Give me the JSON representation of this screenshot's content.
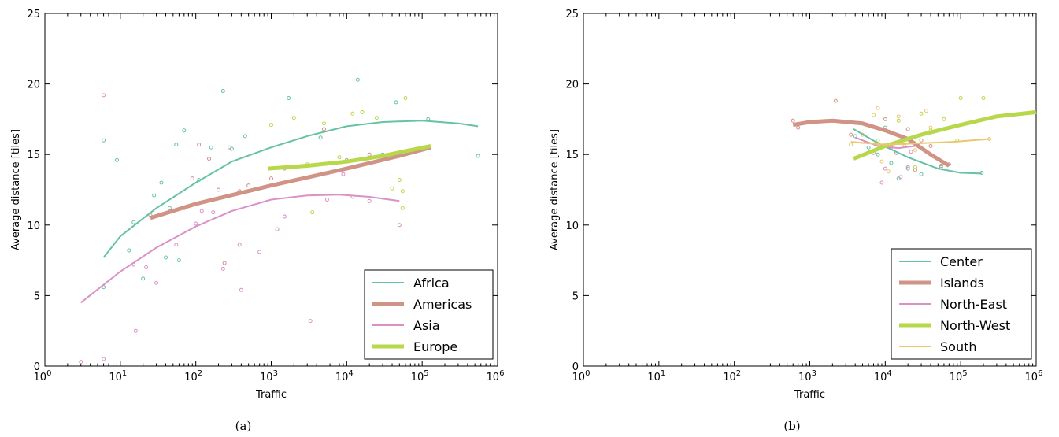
{
  "chart_data": [
    {
      "type": "scatter",
      "caption": "(a)",
      "xlabel": "Traffic",
      "ylabel": "Average distance [tiles]",
      "xscale": "log",
      "xlim": [
        1,
        1000000
      ],
      "ylim": [
        0,
        25
      ],
      "x_tick_labels": [
        {
          "base": "10",
          "exp": "0"
        },
        {
          "base": "10",
          "exp": "1"
        },
        {
          "base": "10",
          "exp": "2"
        },
        {
          "base": "10",
          "exp": "3"
        },
        {
          "base": "10",
          "exp": "4"
        },
        {
          "base": "10",
          "exp": "5"
        },
        {
          "base": "10",
          "exp": "6"
        }
      ],
      "y_ticks": [
        "0",
        "5",
        "10",
        "15",
        "20",
        "25"
      ],
      "legend_position": "bottom-right",
      "series": [
        {
          "name": "Africa",
          "color": "#66c2a5",
          "width": 2,
          "fit": [
            [
              6,
              7.7
            ],
            [
              10,
              9.2
            ],
            [
              30,
              11.2
            ],
            [
              100,
              13.0
            ],
            [
              300,
              14.5
            ],
            [
              1000,
              15.5
            ],
            [
              3000,
              16.3
            ],
            [
              10000,
              17.0
            ],
            [
              30000,
              17.3
            ],
            [
              100000,
              17.4
            ],
            [
              300000,
              17.2
            ],
            [
              550000,
              17.0
            ]
          ],
          "points": [
            [
              6,
              16.0
            ],
            [
              9,
              14.6
            ],
            [
              6,
              5.6
            ],
            [
              13,
              8.2
            ],
            [
              15,
              10.2
            ],
            [
              20,
              6.2
            ],
            [
              28,
              12.1
            ],
            [
              35,
              13.0
            ],
            [
              45,
              11.2
            ],
            [
              55,
              15.7
            ],
            [
              70,
              16.7
            ],
            [
              110,
              13.2
            ],
            [
              160,
              15.5
            ],
            [
              230,
              19.5
            ],
            [
              300,
              15.4
            ],
            [
              450,
              16.3
            ],
            [
              1700,
              19.0
            ],
            [
              4500,
              16.2
            ],
            [
              14000,
              20.3
            ],
            [
              30000,
              15.0
            ],
            [
              45000,
              18.7
            ],
            [
              120000,
              17.5
            ],
            [
              550000,
              14.9
            ],
            [
              40,
              7.7
            ],
            [
              60,
              7.5
            ]
          ]
        },
        {
          "name": "Americas",
          "color": "#d09385",
          "width": 5,
          "fit": [
            [
              25,
              10.5
            ],
            [
              100,
              11.5
            ],
            [
              1000,
              12.8
            ],
            [
              10000,
              14.0
            ],
            [
              50000,
              14.9
            ],
            [
              130000,
              15.5
            ]
          ],
          "points": [
            [
              25,
              10.7
            ],
            [
              70,
              11.2
            ],
            [
              90,
              13.3
            ],
            [
              110,
              15.7
            ],
            [
              150,
              14.7
            ],
            [
              200,
              12.5
            ],
            [
              280,
              15.5
            ],
            [
              380,
              12.4
            ],
            [
              500,
              12.8
            ],
            [
              1000,
              13.3
            ],
            [
              1500,
              14.0
            ],
            [
              3000,
              14.2
            ],
            [
              5000,
              16.8
            ],
            [
              10000,
              14.6
            ],
            [
              20000,
              15.0
            ],
            [
              240,
              7.3
            ]
          ]
        },
        {
          "name": "Asia",
          "color": "#d991c8",
          "width": 2,
          "fit": [
            [
              3,
              4.5
            ],
            [
              10,
              6.7
            ],
            [
              30,
              8.4
            ],
            [
              100,
              9.9
            ],
            [
              300,
              11.0
            ],
            [
              1000,
              11.8
            ],
            [
              3000,
              12.1
            ],
            [
              8000,
              12.15
            ],
            [
              20000,
              12.0
            ],
            [
              50000,
              11.7
            ]
          ],
          "points": [
            [
              3,
              0.3
            ],
            [
              6,
              0.5
            ],
            [
              6,
              19.2
            ],
            [
              16,
              2.5
            ],
            [
              15,
              7.2
            ],
            [
              22,
              7.0
            ],
            [
              30,
              5.9
            ],
            [
              55,
              8.6
            ],
            [
              100,
              10.1
            ],
            [
              120,
              11.0
            ],
            [
              170,
              10.9
            ],
            [
              230,
              6.9
            ],
            [
              380,
              8.6
            ],
            [
              400,
              5.4
            ],
            [
              700,
              8.1
            ],
            [
              1200,
              9.7
            ],
            [
              1500,
              10.6
            ],
            [
              3300,
              3.2
            ],
            [
              5500,
              11.8
            ],
            [
              9000,
              13.6
            ],
            [
              12000,
              12.0
            ],
            [
              20000,
              11.7
            ],
            [
              50000,
              10.0
            ]
          ]
        },
        {
          "name": "Europe",
          "color": "#b8d84c",
          "width": 5,
          "fit": [
            [
              900,
              14.0
            ],
            [
              3000,
              14.2
            ],
            [
              10000,
              14.5
            ],
            [
              30000,
              14.9
            ],
            [
              130000,
              15.6
            ]
          ],
          "points": [
            [
              1000,
              17.1
            ],
            [
              2000,
              17.6
            ],
            [
              3000,
              14.3
            ],
            [
              3500,
              10.9
            ],
            [
              5000,
              17.2
            ],
            [
              8000,
              14.8
            ],
            [
              16000,
              18.0
            ],
            [
              25000,
              17.6
            ],
            [
              40000,
              12.6
            ],
            [
              55000,
              12.4
            ],
            [
              60000,
              19.0
            ],
            [
              55000,
              11.2
            ],
            [
              50000,
              13.2
            ],
            [
              12000,
              17.9
            ]
          ]
        }
      ]
    },
    {
      "type": "scatter",
      "caption": "(b)",
      "xlabel": "Traffic",
      "ylabel": "Average distance [tiles]",
      "xscale": "log",
      "xlim": [
        1,
        1000000
      ],
      "ylim": [
        0,
        25
      ],
      "x_tick_labels": [
        {
          "base": "10",
          "exp": "0"
        },
        {
          "base": "10",
          "exp": "1"
        },
        {
          "base": "10",
          "exp": "2"
        },
        {
          "base": "10",
          "exp": "3"
        },
        {
          "base": "10",
          "exp": "4"
        },
        {
          "base": "10",
          "exp": "5"
        },
        {
          "base": "10",
          "exp": "6"
        }
      ],
      "y_ticks": [
        "0",
        "5",
        "10",
        "15",
        "20",
        "25"
      ],
      "legend_position": "bottom-right",
      "series": [
        {
          "name": "Center",
          "color": "#66c2a5",
          "width": 2,
          "fit": [
            [
              3800,
              16.8
            ],
            [
              8000,
              15.8
            ],
            [
              20000,
              14.8
            ],
            [
              50000,
              14.0
            ],
            [
              100000,
              13.7
            ],
            [
              190000,
              13.65
            ]
          ],
          "points": [
            [
              4000,
              16.3
            ],
            [
              6000,
              15.5
            ],
            [
              8000,
              15.0
            ],
            [
              10000,
              16.9
            ],
            [
              12000,
              14.4
            ],
            [
              15000,
              13.3
            ],
            [
              20000,
              14.0
            ],
            [
              30000,
              13.6
            ],
            [
              55000,
              14.2
            ],
            [
              190000,
              13.7
            ]
          ]
        },
        {
          "name": "Islands",
          "color": "#d09385",
          "width": 5,
          "fit": [
            [
              600,
              17.1
            ],
            [
              1000,
              17.3
            ],
            [
              2000,
              17.4
            ],
            [
              5000,
              17.2
            ],
            [
              10000,
              16.7
            ],
            [
              20000,
              16.1
            ],
            [
              40000,
              15.0
            ],
            [
              70000,
              14.2
            ]
          ],
          "points": [
            [
              600,
              17.4
            ],
            [
              700,
              16.9
            ],
            [
              2200,
              18.8
            ],
            [
              3500,
              16.4
            ],
            [
              10000,
              17.5
            ],
            [
              14000,
              15.1
            ],
            [
              20000,
              16.8
            ],
            [
              30000,
              16.0
            ],
            [
              40000,
              15.6
            ],
            [
              55000,
              14.1
            ],
            [
              70000,
              14.3
            ],
            [
              25000,
              13.9
            ]
          ]
        },
        {
          "name": "North-East",
          "color": "#d991c8",
          "width": 2,
          "fit": [
            [
              4000,
              16.2
            ],
            [
              8000,
              15.6
            ],
            [
              15000,
              15.45
            ],
            [
              25000,
              15.6
            ]
          ],
          "points": [
            [
              5000,
              15.9
            ],
            [
              7000,
              15.1
            ],
            [
              9000,
              13.0
            ],
            [
              12000,
              15.5
            ],
            [
              16000,
              13.4
            ],
            [
              20000,
              14.1
            ],
            [
              22000,
              15.2
            ],
            [
              10000,
              14.0
            ]
          ]
        },
        {
          "name": "North-West",
          "color": "#b8d84c",
          "width": 5,
          "fit": [
            [
              3800,
              14.7
            ],
            [
              10000,
              15.6
            ],
            [
              30000,
              16.4
            ],
            [
              100000,
              17.1
            ],
            [
              300000,
              17.7
            ],
            [
              1000000,
              18.0
            ]
          ],
          "points": [
            [
              8000,
              16.0
            ],
            [
              10000,
              15.7
            ],
            [
              15000,
              17.4
            ],
            [
              20000,
              16.1
            ],
            [
              30000,
              17.9
            ],
            [
              60000,
              17.5
            ],
            [
              100000,
              19.0
            ],
            [
              200000,
              19.0
            ],
            [
              500000,
              17.8
            ],
            [
              40000,
              16.7
            ],
            [
              90000,
              16.0
            ],
            [
              25000,
              14.1
            ]
          ]
        },
        {
          "name": "South",
          "color": "#e8c86e",
          "width": 2,
          "fit": [
            [
              3500,
              15.9
            ],
            [
              10000,
              15.7
            ],
            [
              30000,
              15.8
            ],
            [
              80000,
              15.9
            ],
            [
              240000,
              16.1
            ]
          ],
          "points": [
            [
              3500,
              15.7
            ],
            [
              5000,
              16.4
            ],
            [
              7000,
              17.8
            ],
            [
              8000,
              18.3
            ],
            [
              9000,
              14.5
            ],
            [
              11000,
              13.8
            ],
            [
              15000,
              17.7
            ],
            [
              18000,
              15.6
            ],
            [
              35000,
              18.1
            ],
            [
              40000,
              16.9
            ],
            [
              25000,
              15.3
            ],
            [
              240000,
              16.1
            ]
          ]
        }
      ]
    }
  ]
}
